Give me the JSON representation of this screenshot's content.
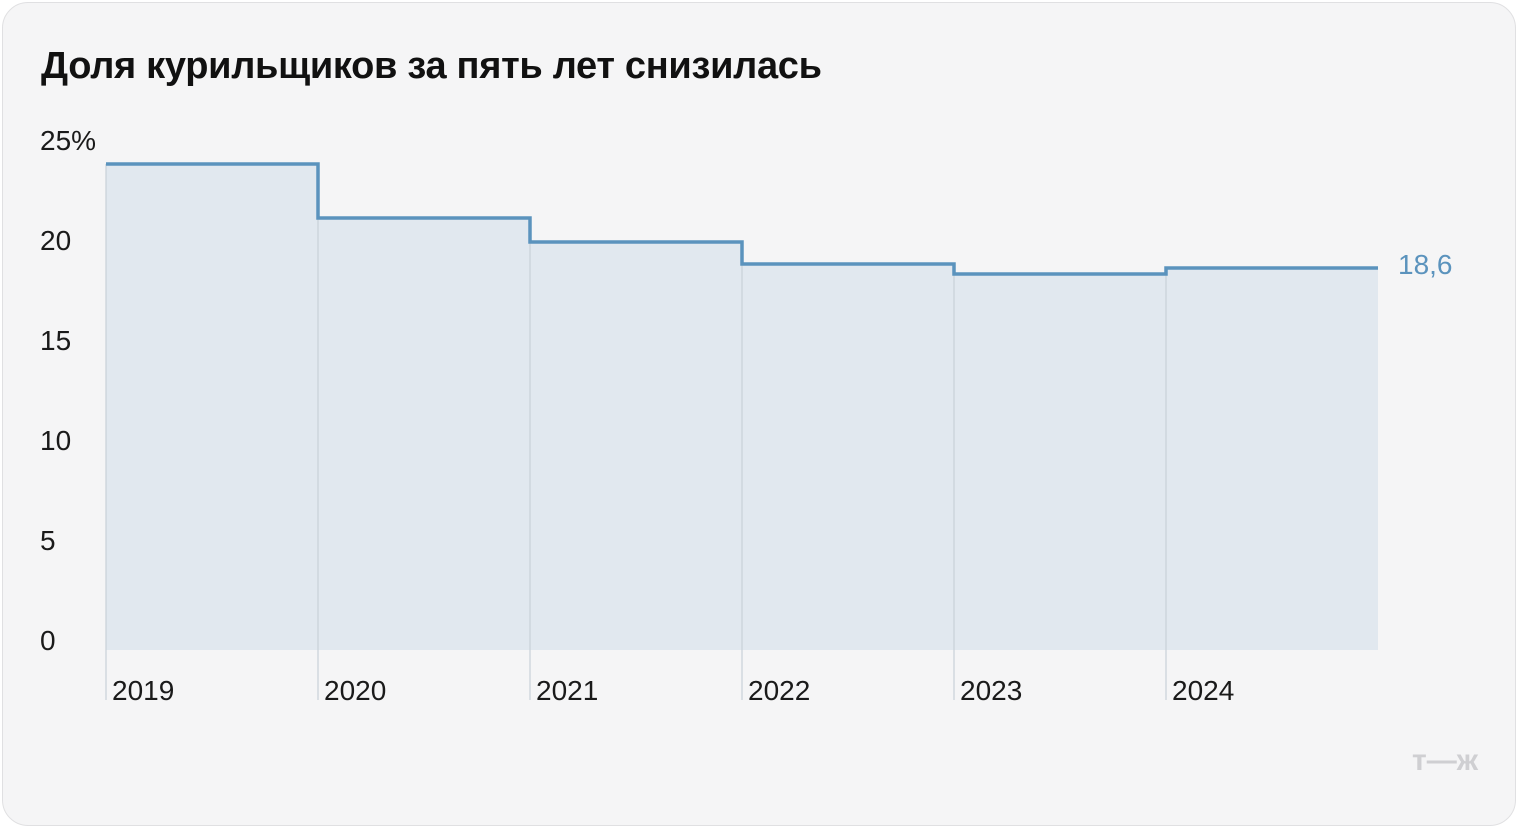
{
  "title": "Доля курильщиков за пять лет снизилась",
  "logo_text": "т—ж",
  "colors": {
    "line": "#5b93bd",
    "area": "#e1e8ef",
    "divider": "#c8d0d8",
    "value_label": "#5b93bd",
    "logo": "#cfcfd2"
  },
  "chart_data": {
    "type": "area",
    "step": true,
    "title": "Доля курильщиков за пять лет снизилась",
    "xlabel": "",
    "ylabel": "",
    "categories": [
      "2019",
      "2020",
      "2021",
      "2022",
      "2023",
      "2024"
    ],
    "series": [
      {
        "values": [
          23.8,
          21.1,
          19.9,
          18.8,
          18.3,
          18.6
        ]
      }
    ],
    "ylim": [
      0,
      25
    ],
    "yticks": [
      0,
      5,
      10,
      15,
      20,
      25
    ],
    "ytick_labels": [
      "0",
      "5",
      "10",
      "15",
      "20",
      "25%"
    ],
    "end_label": "18,6",
    "grid": false,
    "legend": "none"
  }
}
